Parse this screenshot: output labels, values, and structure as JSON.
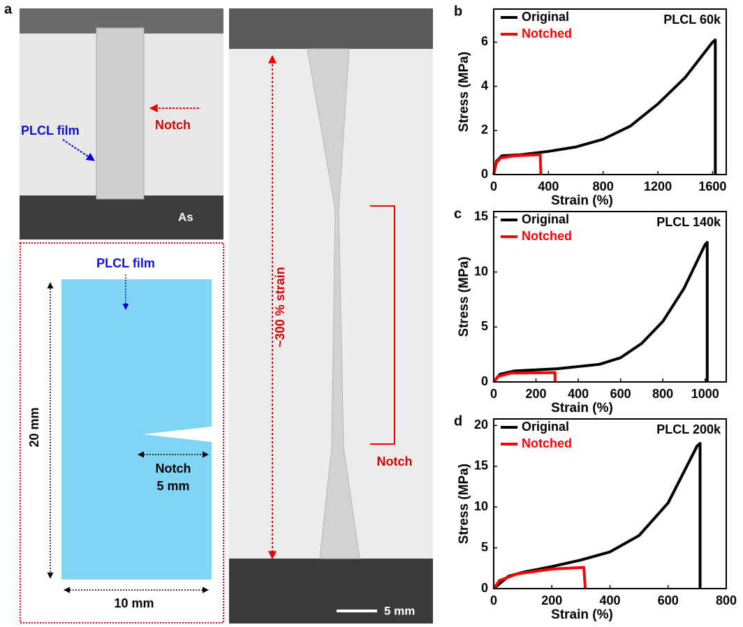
{
  "figure": {
    "panel_labels": [
      "a",
      "b",
      "c",
      "d"
    ],
    "photo_as": {
      "film_label": "PLCL film",
      "notch_label": "Notch",
      "state": "As"
    },
    "schematic": {
      "film_label": "PLCL film",
      "height": "20 mm",
      "notch_label": "Notch",
      "notch_length": "5 mm",
      "width": "10 mm"
    },
    "photo_strained": {
      "strain_label": "~300 % strain",
      "notch_label": "Notch",
      "scale_bar": "5 mm"
    }
  },
  "chart_data": [
    {
      "type": "line",
      "title": "PLCL 60k",
      "xlabel": "Strain (%)",
      "ylabel": "Stress (MPa)",
      "xlim": [
        0,
        1700
      ],
      "xticks": [
        0,
        400,
        800,
        1200,
        1600
      ],
      "ylim": [
        0,
        7.5
      ],
      "yticks": [
        0,
        2,
        4,
        6
      ],
      "legend": "upper left",
      "series": [
        {
          "name": "Original",
          "color": "#000000",
          "x": [
            0,
            20,
            60,
            200,
            400,
            600,
            800,
            1000,
            1200,
            1400,
            1600,
            1620,
            1620
          ],
          "values": [
            0,
            0.6,
            0.85,
            0.9,
            1.05,
            1.25,
            1.6,
            2.2,
            3.2,
            4.4,
            6.0,
            6.1,
            0
          ]
        },
        {
          "name": "Notched",
          "color": "#ff0000",
          "x": [
            0,
            15,
            50,
            150,
            340,
            345
          ],
          "values": [
            0,
            0.5,
            0.75,
            0.85,
            0.9,
            0
          ]
        }
      ]
    },
    {
      "type": "line",
      "title": "PLCL 140k",
      "xlabel": "Strain (%)",
      "ylabel": "Stress (MPa)",
      "xlim": [
        0,
        1100
      ],
      "xticks": [
        0,
        200,
        400,
        600,
        800,
        1000
      ],
      "ylim": [
        0,
        15.5
      ],
      "yticks": [
        0,
        5,
        10,
        15
      ],
      "legend": "upper left",
      "series": [
        {
          "name": "Original",
          "color": "#000000",
          "x": [
            0,
            30,
            100,
            300,
            500,
            600,
            700,
            800,
            900,
            1000,
            1010,
            1010
          ],
          "values": [
            0,
            0.7,
            1.0,
            1.2,
            1.6,
            2.2,
            3.5,
            5.5,
            8.5,
            12.5,
            12.7,
            0
          ]
        },
        {
          "name": "Notched",
          "color": "#ff0000",
          "x": [
            0,
            20,
            80,
            290,
            290
          ],
          "values": [
            0,
            0.5,
            0.8,
            0.85,
            0
          ]
        }
      ]
    },
    {
      "type": "line",
      "title": "PLCL 200k",
      "xlabel": "Strain (%)",
      "ylabel": "Stress (MPa)",
      "xlim": [
        0,
        800
      ],
      "xticks": [
        0,
        200,
        400,
        600,
        800
      ],
      "ylim": [
        0,
        20.8
      ],
      "yticks": [
        0,
        5,
        10,
        15,
        20
      ],
      "legend": "upper left",
      "series": [
        {
          "name": "Original",
          "color": "#000000",
          "x": [
            0,
            50,
            100,
            200,
            300,
            400,
            500,
            600,
            700,
            710,
            710
          ],
          "values": [
            0,
            1.5,
            2,
            2.7,
            3.5,
            4.5,
            6.5,
            10.5,
            17.5,
            17.8,
            0
          ]
        },
        {
          "name": "Notched",
          "color": "#ff0000",
          "x": [
            0,
            20,
            80,
            200,
            310,
            315
          ],
          "values": [
            0,
            1,
            1.8,
            2.4,
            2.6,
            0
          ]
        }
      ]
    }
  ]
}
